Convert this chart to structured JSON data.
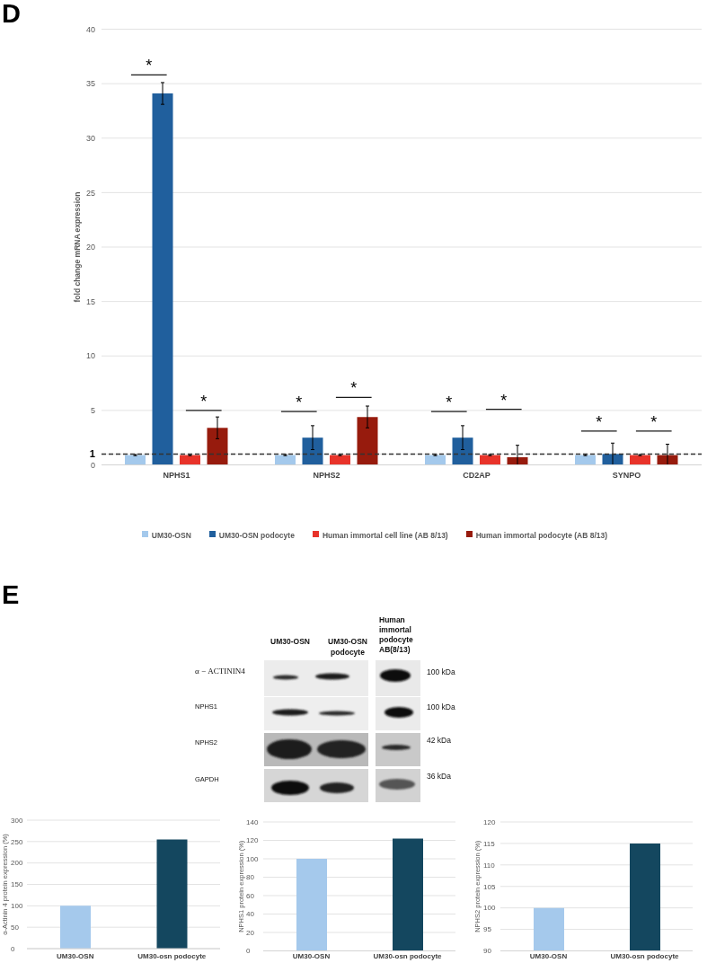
{
  "chart_data": [
    {
      "type": "bar",
      "title": "D",
      "categories": [
        "NPHS1",
        "NPHS2",
        "CD2AP",
        "SYNPO"
      ],
      "ylabel": "fold change mRNA expression",
      "ylim": [
        0,
        40
      ],
      "yticks": [
        0,
        1,
        5,
        10,
        15,
        20,
        25,
        30,
        35,
        40
      ],
      "grid": "y",
      "legend": "bottom",
      "series": [
        {
          "name": "UM30-OSN",
          "color": "#a4c9ec",
          "values": [
            0.9,
            0.9,
            0.9,
            0.9
          ],
          "errors": [
            0.05,
            0.05,
            0.05,
            0.05
          ]
        },
        {
          "name": "UM30-OSN podocyte",
          "color": "#205f9d",
          "values": [
            34.1,
            2.5,
            2.5,
            1.0
          ],
          "errors": [
            1.0,
            1.1,
            1.1,
            [
              0,
              2.0
            ]
          ]
        },
        {
          "name": "Human immortal cell line (AB 8/13)",
          "color": "#e8332a",
          "values": [
            0.9,
            0.9,
            0.9,
            0.9
          ],
          "errors": [
            0.05,
            0.05,
            0.05,
            0.05
          ]
        },
        {
          "name": "Human immortal podocyte (AB 8/13)",
          "color": "#971b0d",
          "values": [
            3.4,
            4.4,
            0.7,
            0.9
          ],
          "errors": [
            1.0,
            1.0,
            [
              0,
              1.8
            ],
            [
              0,
              1.9
            ]
          ]
        }
      ],
      "ref_lines": [
        {
          "axis": "y",
          "value": 1,
          "color": "#333333",
          "line_style": "dashed"
        }
      ],
      "annotations": [
        "*",
        "*",
        "*",
        "*",
        "*",
        "*",
        "*",
        "*"
      ]
    },
    {
      "type": "other",
      "title": "E",
      "categories": [
        "UM30-OSN",
        "UM30-OSN podocyte",
        "Human immortal podocyte AB(8/13)"
      ],
      "y_categories": [
        "α − ACTININ4",
        "NPHS1",
        "NPHS2",
        "GAPDH"
      ],
      "y2_categories": [
        "100 kDa",
        "100 kDa",
        "42 kDa",
        "36 kDa"
      ]
    },
    {
      "type": "bar",
      "categories": [
        "UM30-OSN",
        "UM30-osn podocyte"
      ],
      "values": [
        100,
        255
      ],
      "colors": [
        "#a5c9ec",
        "#14475f"
      ],
      "ylabel": "α-Actinin 4 protein expression (%)",
      "ylim": [
        0,
        300
      ],
      "yticks": [
        0,
        50,
        100,
        150,
        200,
        250,
        300
      ],
      "grid": "y"
    },
    {
      "type": "bar",
      "categories": [
        "UM30-OSN",
        "UM30-osn podocyte"
      ],
      "values": [
        100,
        122
      ],
      "colors": [
        "#a5c9ec",
        "#14475f"
      ],
      "ylabel": "NPHS1 protein expression (%)",
      "ylim": [
        0,
        140
      ],
      "yticks": [
        0,
        20,
        40,
        60,
        80,
        100,
        120,
        140
      ],
      "grid": "y"
    },
    {
      "type": "bar",
      "categories": [
        "UM30-OSN",
        "UM30-osn podocyte"
      ],
      "values": [
        100,
        115
      ],
      "colors": [
        "#a5c9ec",
        "#14475f"
      ],
      "ylabel": "NPHS2 protein expression (%)",
      "ylim": [
        90,
        120
      ],
      "yticks": [
        90,
        95,
        100,
        105,
        110,
        115,
        120
      ],
      "grid": "y"
    }
  ]
}
